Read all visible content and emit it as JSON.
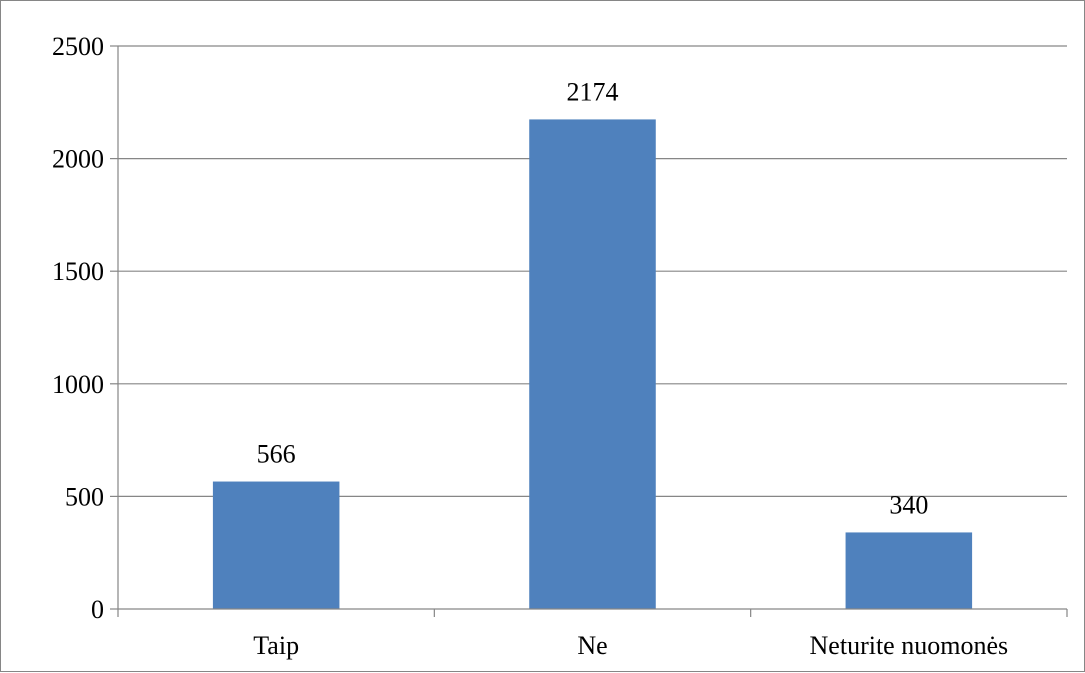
{
  "chart_data": {
    "type": "bar",
    "categories": [
      "Taip",
      "Ne",
      "Neturite nuomonės"
    ],
    "values": [
      566,
      2174,
      340
    ],
    "data_labels": [
      "566",
      "2174",
      "340"
    ],
    "ylim": [
      0,
      2500
    ],
    "yticks": [
      0,
      500,
      1000,
      1500,
      2000,
      2500
    ],
    "ytick_labels": [
      "0",
      "500",
      "1000",
      "1500",
      "2000",
      "2500"
    ],
    "grid": true,
    "legend": "none",
    "bar_color": "#4f81bd",
    "grid_color": "#868686"
  }
}
